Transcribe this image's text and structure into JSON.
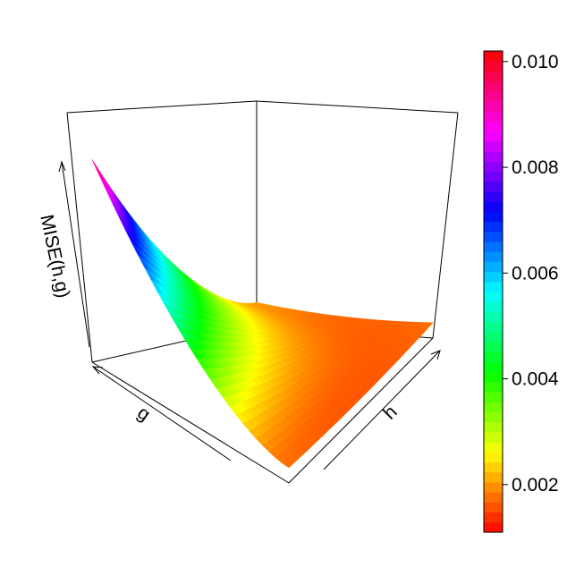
{
  "chart_data": {
    "type": "surface3d",
    "title": "",
    "xlabel": "h",
    "ylabel": "g",
    "zlabel": "MISE(h,g)",
    "colorbar": {
      "range": [
        0.0011,
        0.0102
      ],
      "ticks": [
        "0.002",
        "0.004",
        "0.006",
        "0.008",
        "0.010"
      ],
      "tick_values": [
        0.002,
        0.004,
        0.006,
        0.008,
        0.01
      ],
      "palette": "rainbow red-yellow-green-cyan-blue-magenta-red"
    },
    "surface": {
      "shape": "convex bowl, minimum near center, rising steeply toward small h and large g",
      "min_value": 0.0011,
      "max_value": 0.0102
    }
  },
  "colors": {
    "background": "#ffffff",
    "box": "#000000"
  }
}
